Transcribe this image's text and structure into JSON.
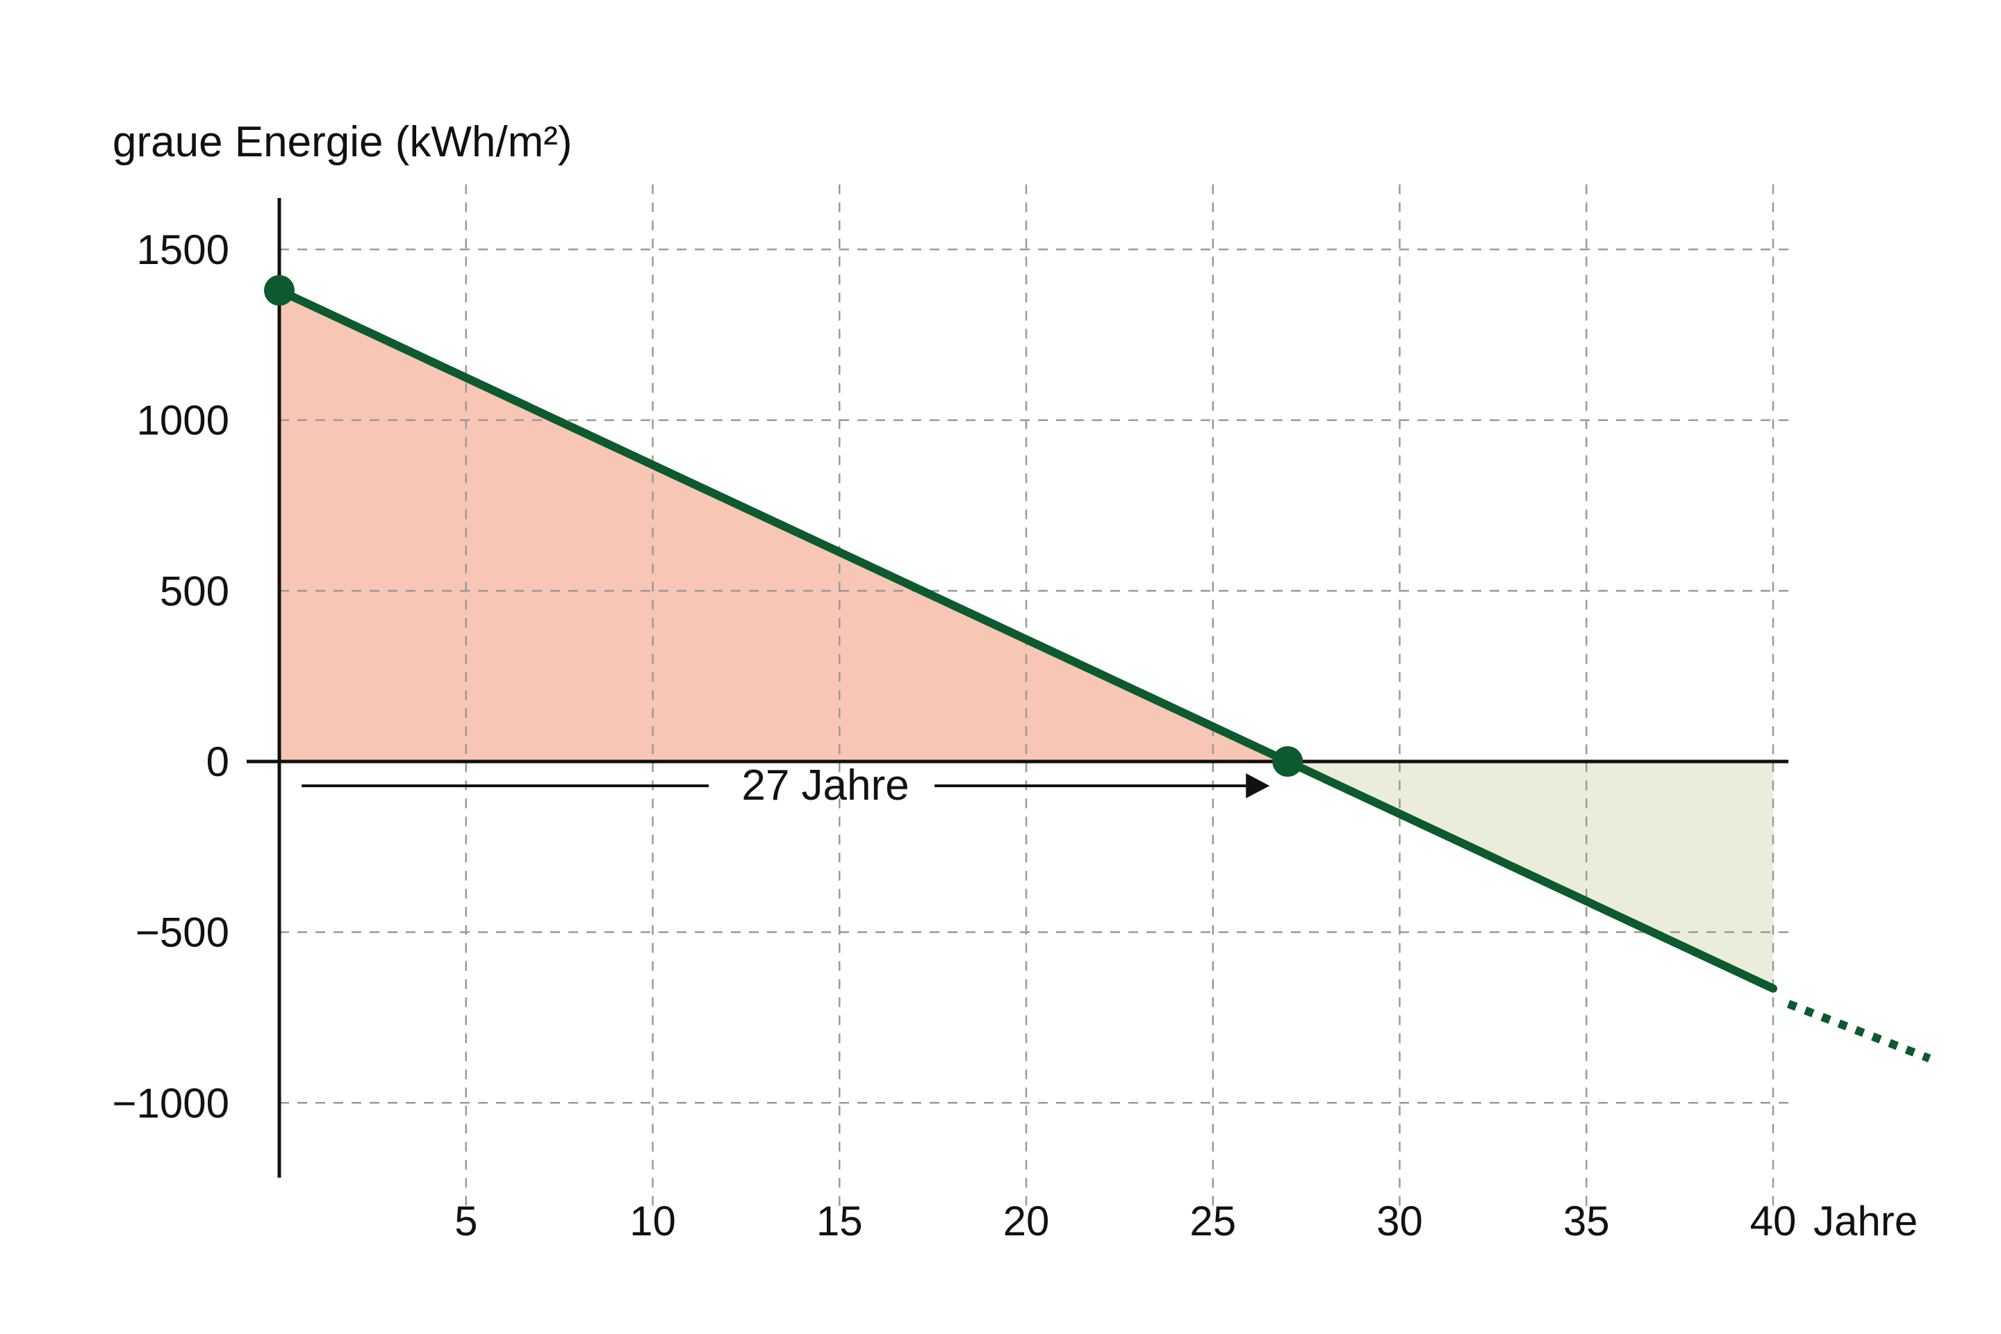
{
  "chart_data": {
    "type": "line",
    "title": "",
    "ylabel": "graue Energie (kWh/m²)",
    "xlabel": "Jahre",
    "x_ticks": [
      5,
      10,
      15,
      20,
      25,
      30,
      35,
      40
    ],
    "x_tick_labels": [
      "5",
      "10",
      "15",
      "20",
      "25",
      "30",
      "35",
      "40"
    ],
    "y_ticks": [
      1500,
      1000,
      500,
      0,
      -500,
      -1000
    ],
    "y_tick_labels": [
      "1500",
      "1000",
      "500",
      "0",
      "−500",
      "−1000"
    ],
    "xlim": [
      0,
      40
    ],
    "ylim": [
      -1250,
      1650
    ],
    "grid": true,
    "series": [
      {
        "x": [
          0,
          27,
          40
        ],
        "y": [
          1380,
          0,
          -665
        ],
        "extrapolated": {
          "x": [
            40,
            44
          ],
          "y": [
            -665,
            -870
          ],
          "style": "dotted"
        }
      }
    ],
    "markers": [
      {
        "x": 0,
        "y": 1380
      },
      {
        "x": 27,
        "y": 0
      }
    ],
    "shaded_regions": [
      {
        "from_x": 0,
        "to_x": 27,
        "sign": "positive",
        "color": "#f7c6b4"
      },
      {
        "from_x": 27,
        "to_x": 40,
        "sign": "negative",
        "color": "#eaedd9"
      }
    ],
    "annotations": [
      {
        "text": "27 Jahre",
        "arrow_from_x": 0.6,
        "arrow_to_x": 27
      }
    ],
    "colors": {
      "line": "#0c5a2e",
      "positive_fill": "#f7c6b4",
      "negative_fill": "#eaedd9",
      "axis": "#111111",
      "grid": "#9a9a9a"
    }
  }
}
